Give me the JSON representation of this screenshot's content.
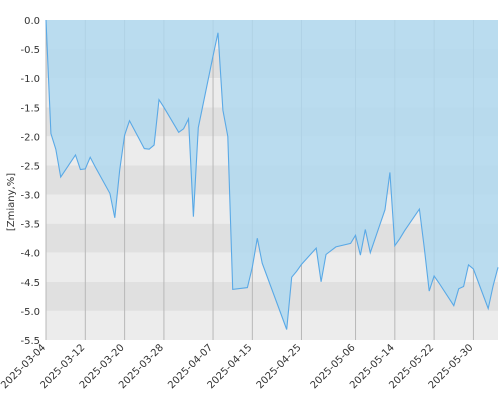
{
  "chart_data": {
    "type": "area",
    "title": "",
    "xlabel": "",
    "ylabel": "[Zmiany,%]",
    "ylim": [
      -5.5,
      0
    ],
    "yticks": [
      0,
      -0.5,
      -1,
      -1.5,
      -2,
      -2.5,
      -3,
      -3.5,
      -4,
      -4.5,
      -5,
      -5.5
    ],
    "ytick_labels": [
      "0.0",
      "-0.5",
      "-1.0",
      "-1.5",
      "-2.0",
      "-2.5",
      "-3.0",
      "-3.5",
      "-4.0",
      "-4.5",
      "-5.0",
      "-5.5"
    ],
    "xlim": [
      "2025-03-04",
      "2025-06-04"
    ],
    "xtick_labels": [
      "2025-03-04",
      "2025-03-12",
      "2025-03-20",
      "2025-03-28",
      "2025-04-07",
      "2025-04-15",
      "2025-04-25",
      "2025-05-06",
      "2025-05-14",
      "2025-05-22",
      "2025-05-30"
    ],
    "grid": true,
    "colors": {
      "line": "#5aa9e6",
      "fill": "#aed8ef",
      "band_dark": "#e0e0e0",
      "band_light": "#ececec",
      "grid": "#b8b8b8"
    },
    "series": [
      {
        "name": "",
        "x": [
          "2025-03-04",
          "2025-03-05",
          "2025-03-06",
          "2025-03-07",
          "2025-03-10",
          "2025-03-11",
          "2025-03-12",
          "2025-03-13",
          "2025-03-14",
          "2025-03-17",
          "2025-03-18",
          "2025-03-19",
          "2025-03-20",
          "2025-03-21",
          "2025-03-24",
          "2025-03-25",
          "2025-03-26",
          "2025-03-27",
          "2025-03-28",
          "2025-03-31",
          "2025-04-01",
          "2025-04-02",
          "2025-04-03",
          "2025-04-04",
          "2025-04-07",
          "2025-04-08",
          "2025-04-09",
          "2025-04-10",
          "2025-04-11",
          "2025-04-14",
          "2025-04-15",
          "2025-04-16",
          "2025-04-17",
          "2025-04-22",
          "2025-04-23",
          "2025-04-24",
          "2025-04-25",
          "2025-04-28",
          "2025-04-29",
          "2025-04-30",
          "2025-05-02",
          "2025-05-05",
          "2025-05-06",
          "2025-05-07",
          "2025-05-08",
          "2025-05-09",
          "2025-05-12",
          "2025-05-13",
          "2025-05-14",
          "2025-05-15",
          "2025-05-16",
          "2025-05-19",
          "2025-05-20",
          "2025-05-21",
          "2025-05-22",
          "2025-05-23",
          "2025-05-26",
          "2025-05-27",
          "2025-05-28",
          "2025-05-29",
          "2025-05-30",
          "2025-06-02",
          "2025-06-03",
          "2025-06-04"
        ],
        "values": [
          0.0,
          -1.95,
          -2.22,
          -2.7,
          -2.32,
          -2.57,
          -2.56,
          -2.36,
          -2.52,
          -2.98,
          -3.4,
          -2.58,
          -1.98,
          -1.73,
          -2.21,
          -2.22,
          -2.15,
          -1.37,
          -1.5,
          -1.93,
          -1.87,
          -1.7,
          -3.38,
          -1.85,
          -0.62,
          -0.22,
          -1.55,
          -2.0,
          -4.63,
          -4.6,
          -4.25,
          -3.75,
          -4.18,
          -5.32,
          -4.42,
          -4.32,
          -4.2,
          -3.92,
          -4.5,
          -4.03,
          -3.9,
          -3.84,
          -3.7,
          -4.04,
          -3.6,
          -4.0,
          -3.26,
          -2.62,
          -3.88,
          -3.76,
          -3.62,
          -3.25,
          -3.92,
          -4.66,
          -4.4,
          -4.52,
          -4.91,
          -4.62,
          -4.58,
          -4.21,
          -4.28,
          -4.96,
          -4.57,
          -4.25
        ]
      }
    ]
  }
}
